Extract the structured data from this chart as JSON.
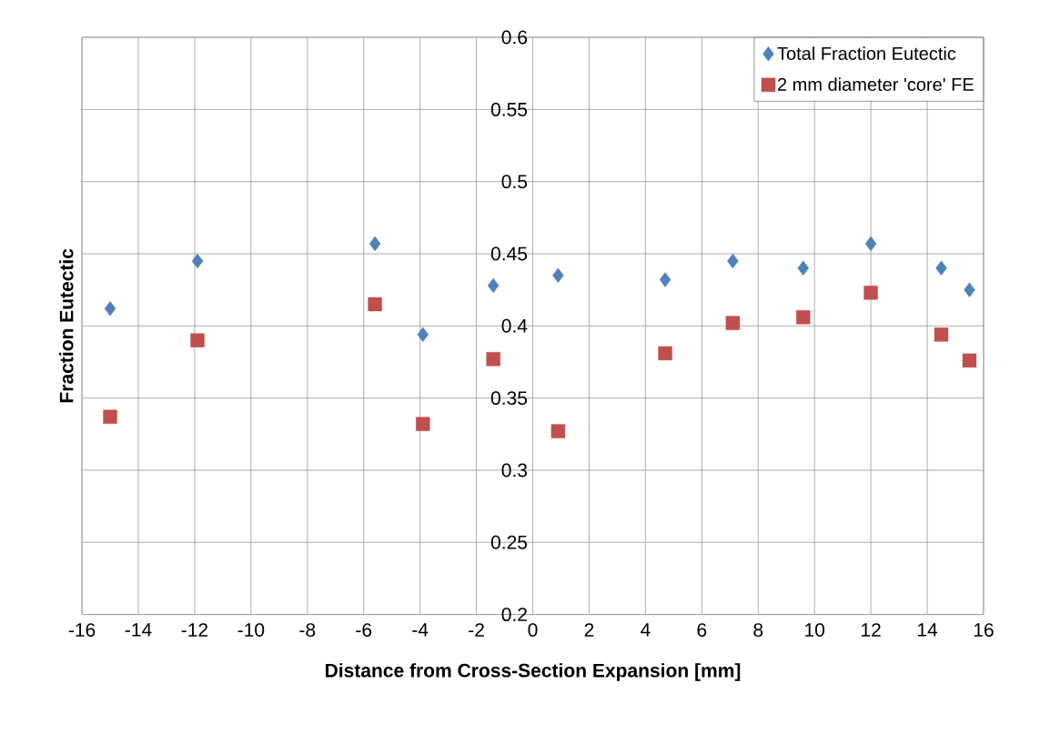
{
  "chart_data": {
    "type": "scatter",
    "xlabel": "Distance from Cross-Section Expansion [mm]",
    "ylabel": "Fraction Eutectic",
    "xlim": [
      -16,
      16
    ],
    "xticks": [
      -16,
      -14,
      -12,
      -10,
      -8,
      -6,
      -4,
      -2,
      0,
      2,
      4,
      6,
      8,
      10,
      12,
      14,
      16
    ],
    "ylim": [
      0.2,
      0.6
    ],
    "yticks": [
      0.2,
      0.25,
      0.3,
      0.35,
      0.4,
      0.45,
      0.5,
      0.55,
      0.6
    ],
    "grid": true,
    "legend": "top right",
    "series": [
      {
        "name": "Total Fraction Eutectic",
        "color": "#4f81bd",
        "marker": "diamond",
        "x": [
          -15,
          -11.9,
          -5.6,
          -3.9,
          -1.4,
          0.9,
          4.7,
          7.1,
          9.6,
          12,
          14.5,
          15.5
        ],
        "values": [
          0.412,
          0.445,
          0.457,
          0.394,
          0.428,
          0.435,
          0.432,
          0.445,
          0.44,
          0.457,
          0.44,
          0.425
        ]
      },
      {
        "name": "2 mm diameter 'core' FE",
        "color": "#c0504d",
        "marker": "square",
        "x": [
          -15,
          -11.9,
          -5.6,
          -3.9,
          -1.4,
          0.9,
          4.7,
          7.1,
          9.6,
          12,
          14.5,
          15.5
        ],
        "values": [
          0.337,
          0.39,
          0.415,
          0.332,
          0.377,
          0.327,
          0.381,
          0.402,
          0.406,
          0.423,
          0.394,
          0.376
        ]
      }
    ]
  }
}
